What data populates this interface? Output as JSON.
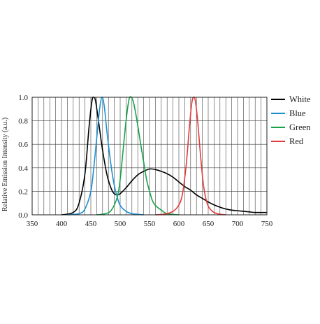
{
  "chart_data": {
    "type": "line",
    "title": "",
    "xlabel": "",
    "ylabel": "Relative Emission Intensity (a.u.)",
    "xlim": [
      350,
      750
    ],
    "ylim": [
      0,
      1.0
    ],
    "x_ticks": [
      "350",
      "400",
      "450",
      "500",
      "550",
      "600",
      "650",
      "700",
      "750"
    ],
    "y_ticks": [
      "0.0",
      "0.2",
      "0.4",
      "0.6",
      "0.8",
      "1.0"
    ],
    "grid": true,
    "legend_position": "right",
    "series": [
      {
        "name": "White",
        "color": "#000000",
        "points": [
          [
            400,
            0.0
          ],
          [
            420,
            0.02
          ],
          [
            430,
            0.1
          ],
          [
            440,
            0.35
          ],
          [
            447,
            0.75
          ],
          [
            452,
            0.97
          ],
          [
            455,
            1.0
          ],
          [
            458,
            0.97
          ],
          [
            463,
            0.8
          ],
          [
            470,
            0.55
          ],
          [
            478,
            0.33
          ],
          [
            485,
            0.22
          ],
          [
            490,
            0.18
          ],
          [
            495,
            0.17
          ],
          [
            500,
            0.18
          ],
          [
            510,
            0.23
          ],
          [
            520,
            0.29
          ],
          [
            530,
            0.34
          ],
          [
            540,
            0.37
          ],
          [
            550,
            0.39
          ],
          [
            560,
            0.385
          ],
          [
            570,
            0.37
          ],
          [
            580,
            0.35
          ],
          [
            590,
            0.32
          ],
          [
            600,
            0.28
          ],
          [
            610,
            0.24
          ],
          [
            620,
            0.21
          ],
          [
            630,
            0.17
          ],
          [
            640,
            0.14
          ],
          [
            650,
            0.11
          ],
          [
            660,
            0.085
          ],
          [
            670,
            0.065
          ],
          [
            680,
            0.05
          ],
          [
            690,
            0.04
          ],
          [
            700,
            0.035
          ],
          [
            710,
            0.03
          ],
          [
            720,
            0.025
          ],
          [
            730,
            0.02
          ],
          [
            740,
            0.02
          ],
          [
            750,
            0.02
          ]
        ]
      },
      {
        "name": "Blue",
        "color": "#1b8fd0",
        "points": [
          [
            410,
            0.0
          ],
          [
            430,
            0.01
          ],
          [
            440,
            0.05
          ],
          [
            450,
            0.2
          ],
          [
            455,
            0.4
          ],
          [
            460,
            0.65
          ],
          [
            465,
            0.9
          ],
          [
            469,
            1.0
          ],
          [
            473,
            0.92
          ],
          [
            478,
            0.68
          ],
          [
            485,
            0.4
          ],
          [
            490,
            0.25
          ],
          [
            495,
            0.15
          ],
          [
            500,
            0.08
          ],
          [
            510,
            0.03
          ],
          [
            520,
            0.01
          ],
          [
            540,
            0.0
          ]
        ]
      },
      {
        "name": "Green",
        "color": "#16a34a",
        "points": [
          [
            460,
            0.0
          ],
          [
            475,
            0.01
          ],
          [
            485,
            0.04
          ],
          [
            495,
            0.15
          ],
          [
            500,
            0.3
          ],
          [
            505,
            0.55
          ],
          [
            510,
            0.8
          ],
          [
            515,
            0.98
          ],
          [
            519,
            1.0
          ],
          [
            523,
            0.95
          ],
          [
            528,
            0.82
          ],
          [
            535,
            0.6
          ],
          [
            540,
            0.45
          ],
          [
            545,
            0.3
          ],
          [
            550,
            0.2
          ],
          [
            555,
            0.12
          ],
          [
            560,
            0.08
          ],
          [
            570,
            0.04
          ],
          [
            580,
            0.01
          ],
          [
            600,
            0.0
          ]
        ]
      },
      {
        "name": "Red",
        "color": "#e33b3b",
        "points": [
          [
            560,
            0.0
          ],
          [
            580,
            0.01
          ],
          [
            595,
            0.05
          ],
          [
            605,
            0.15
          ],
          [
            612,
            0.4
          ],
          [
            618,
            0.75
          ],
          [
            622,
            0.95
          ],
          [
            625,
            1.0
          ],
          [
            628,
            0.97
          ],
          [
            632,
            0.8
          ],
          [
            637,
            0.5
          ],
          [
            642,
            0.25
          ],
          [
            648,
            0.1
          ],
          [
            655,
            0.04
          ],
          [
            665,
            0.01
          ],
          [
            680,
            0.0
          ]
        ]
      }
    ]
  }
}
